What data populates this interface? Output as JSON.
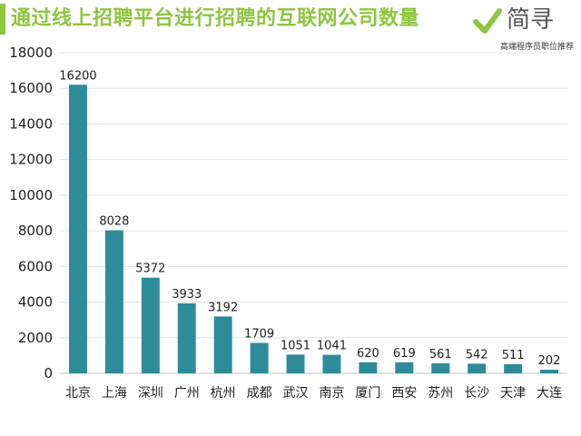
{
  "header": {
    "title": "通过线上招聘平台进行招聘的互联网公司数量",
    "brand_name": "简寻",
    "brand_tagline": "高端程序员职位推荐",
    "accent_color": "#8dc63f"
  },
  "chart_data": {
    "type": "bar",
    "categories": [
      "北京",
      "上海",
      "深圳",
      "广州",
      "杭州",
      "成都",
      "武汉",
      "南京",
      "厦门",
      "西安",
      "苏州",
      "长沙",
      "天津",
      "大连"
    ],
    "values": [
      16200,
      8028,
      5372,
      3933,
      3192,
      1709,
      1051,
      1041,
      620,
      619,
      561,
      542,
      511,
      202
    ],
    "data_labels": [
      "16200",
      "8028",
      "5372",
      "3933",
      "3192",
      "1709",
      "1051",
      "1041",
      "620",
      "619",
      "561",
      "542",
      "511",
      "202"
    ],
    "title": "通过线上招聘平台进行招聘的互联网公司数量",
    "xlabel": "",
    "ylabel": "",
    "ylim": [
      0,
      18000
    ],
    "yticks": [
      0,
      2000,
      4000,
      6000,
      8000,
      10000,
      12000,
      14000,
      16000,
      18000
    ],
    "grid": true,
    "legend": "none",
    "bar_color": "#2e8b9a"
  }
}
